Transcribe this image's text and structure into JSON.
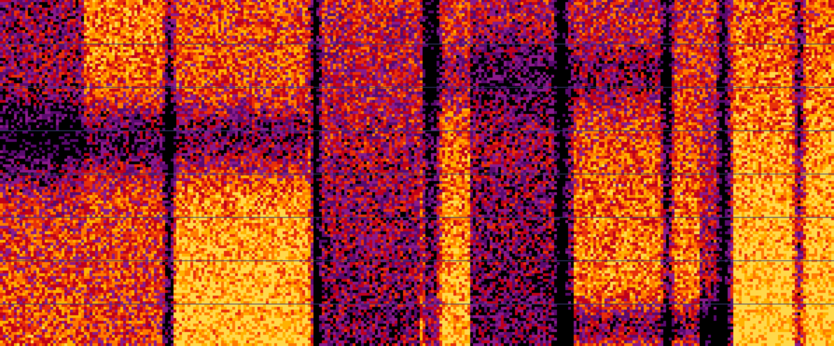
{
  "image": {
    "kind": "spectrogram-heatmap",
    "palette": [
      "#000000",
      "#5a0a6e",
      "#8b1a8b",
      "#c0001a",
      "#e8300a",
      "#ff7a00",
      "#ffb000",
      "#ffd84a"
    ],
    "gridline_color": "#3a3a7a",
    "horizontal_gridline_count": 7
  }
}
